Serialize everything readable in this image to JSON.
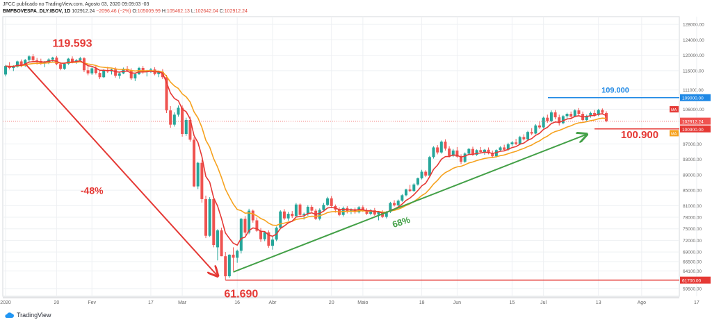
{
  "header": {
    "publisher_line": "JFCC publicado no TradingView.com, Agosto 03, 2020 09:09:03 -03",
    "symbol": "BMFBOVESPA_DLY:IBOV, 1D",
    "last": "102912.24",
    "change": "−2096.46 (−2%)",
    "o_label": "O:",
    "o": "105009.99",
    "h_label": "H:",
    "h": "105462.13",
    "l_label": "L:",
    "l": "102642.04",
    "c_label": "C:",
    "c": "102912.24"
  },
  "brand": {
    "name": "TradingView",
    "icon": "tradingview-cloud-icon"
  },
  "colors": {
    "up": "#26a69a",
    "down": "#ef5350",
    "ma_fast": "#e53935",
    "ma_slow": "#f6a21e",
    "trend_down": "#e53935",
    "trend_up": "#43a047",
    "level_blue": "#1e88e5",
    "grid": "#eef0f3",
    "axis_text": "#666"
  },
  "chart_data": {
    "type": "candlestick",
    "title": "",
    "ylim": [
      57500,
      130000
    ],
    "y_ticks": [
      "128000.00",
      "124000.00",
      "120000.00",
      "116000.00",
      "111000.00",
      "106000.00",
      "100900.00",
      "97000.00",
      "93000.00",
      "89000.00",
      "85000.00",
      "81000.00",
      "78000.00",
      "75000.00",
      "72000.00",
      "69000.00",
      "66500.00",
      "64100.00",
      "59500.00"
    ],
    "y_tick_values": [
      128000,
      124000,
      120000,
      116000,
      111000,
      106000,
      100900,
      97000,
      93000,
      89000,
      85000,
      81000,
      78000,
      75000,
      72000,
      69000,
      66500,
      64100,
      59500
    ],
    "x_ticks": [
      "2020",
      "20",
      "Fev",
      "17",
      "Mar",
      "16",
      "Abr",
      "20",
      "Maio",
      "18",
      "Jun",
      "15",
      "Jul",
      "13",
      "Ago",
      "17"
    ],
    "x_tick_index": [
      0,
      13,
      22,
      37,
      45,
      59,
      68,
      83,
      91,
      106,
      115,
      129,
      137,
      151,
      162,
      176
    ],
    "candles_start": "2020-01-02",
    "candles": [
      [
        115000,
        117500,
        114500,
        117200
      ],
      [
        117200,
        118200,
        116300,
        116700
      ],
      [
        116700,
        117400,
        115900,
        117000
      ],
      [
        117000,
        118600,
        116800,
        118400
      ],
      [
        118400,
        118900,
        116900,
        117300
      ],
      [
        117300,
        119000,
        117000,
        118800
      ],
      [
        118800,
        120000,
        118200,
        119700
      ],
      [
        119700,
        120300,
        118400,
        118700
      ],
      [
        118700,
        119300,
        117600,
        118500
      ],
      [
        118500,
        119100,
        117500,
        117900
      ],
      [
        117900,
        118500,
        116900,
        118200
      ],
      [
        118200,
        119200,
        117700,
        118900
      ],
      [
        118900,
        119600,
        118300,
        119400
      ],
      [
        119400,
        119800,
        117400,
        117700
      ],
      [
        117700,
        118200,
        116100,
        116500
      ],
      [
        116500,
        118100,
        116200,
        117800
      ],
      [
        117800,
        119300,
        117500,
        119100
      ],
      [
        119100,
        119700,
        117900,
        118300
      ],
      [
        118300,
        119000,
        117800,
        118700
      ],
      [
        118700,
        119593,
        118200,
        119200
      ],
      [
        119200,
        119500,
        115600,
        116100
      ],
      [
        116100,
        117300,
        114800,
        115300
      ],
      [
        115300,
        116900,
        114900,
        116600
      ],
      [
        116600,
        117200,
        115000,
        115400
      ],
      [
        115400,
        115900,
        113800,
        114300
      ],
      [
        114300,
        116400,
        114100,
        116100
      ],
      [
        116100,
        117000,
        115400,
        115800
      ],
      [
        115800,
        116500,
        115000,
        116300
      ],
      [
        116300,
        116900,
        114200,
        114700
      ],
      [
        114700,
        115600,
        113900,
        115300
      ],
      [
        115300,
        116800,
        115100,
        116500
      ],
      [
        116500,
        117200,
        115700,
        116000
      ],
      [
        116000,
        116600,
        113600,
        114000
      ],
      [
        114000,
        115300,
        113300,
        115100
      ],
      [
        115100,
        117000,
        114900,
        116700
      ],
      [
        116700,
        117200,
        115200,
        115600
      ],
      [
        115600,
        116200,
        114500,
        115900
      ],
      [
        115900,
        116700,
        115400,
        116300
      ],
      [
        116300,
        116900,
        114800,
        115100
      ],
      [
        115100,
        116000,
        114300,
        115700
      ],
      [
        115700,
        116400,
        113800,
        114300
      ],
      [
        114300,
        114900,
        105000,
        105700
      ],
      [
        105700,
        106800,
        101200,
        102000
      ],
      [
        102000,
        105200,
        101500,
        104600
      ],
      [
        104600,
        107000,
        104100,
        106400
      ],
      [
        106400,
        107000,
        98900,
        99600
      ],
      [
        99600,
        103800,
        99100,
        103200
      ],
      [
        103200,
        104100,
        97600,
        98100
      ],
      [
        98100,
        98700,
        85800,
        86000
      ],
      [
        86000,
        92400,
        85300,
        92100
      ],
      [
        92100,
        92800,
        81800,
        82700
      ],
      [
        82700,
        83600,
        72600,
        73200
      ],
      [
        73200,
        83200,
        72900,
        82700
      ],
      [
        82700,
        82900,
        70200,
        70800
      ],
      [
        70200,
        74900,
        66800,
        74600
      ],
      [
        74600,
        75300,
        67900,
        67900
      ],
      [
        67900,
        69000,
        61690,
        62700
      ],
      [
        62700,
        68400,
        62300,
        68300
      ],
      [
        68300,
        70200,
        64100,
        67500
      ],
      [
        67500,
        69600,
        66200,
        69300
      ],
      [
        69300,
        77800,
        68600,
        77600
      ],
      [
        77600,
        78300,
        73400,
        74000
      ],
      [
        74000,
        80200,
        73600,
        79700
      ],
      [
        79700,
        80000,
        76600,
        77200
      ],
      [
        77200,
        77900,
        74200,
        74500
      ],
      [
        74500,
        75200,
        71600,
        72300
      ],
      [
        72300,
        74300,
        71800,
        74100
      ],
      [
        74100,
        74600,
        70100,
        70600
      ],
      [
        70600,
        73000,
        69600,
        72200
      ],
      [
        72200,
        75600,
        71800,
        75300
      ],
      [
        75300,
        79800,
        74900,
        79500
      ],
      [
        79500,
        80100,
        77300,
        77700
      ],
      [
        77700,
        79400,
        77100,
        78900
      ],
      [
        78900,
        79600,
        77800,
        78300
      ],
      [
        78300,
        81700,
        78000,
        81300
      ],
      [
        81300,
        81600,
        78100,
        78600
      ],
      [
        78600,
        79200,
        77400,
        78900
      ],
      [
        78900,
        81100,
        78400,
        80700
      ],
      [
        80700,
        81200,
        79400,
        79700
      ],
      [
        79700,
        80200,
        77300,
        77600
      ],
      [
        77600,
        80300,
        77200,
        79900
      ],
      [
        79900,
        81700,
        79500,
        81200
      ],
      [
        81200,
        83300,
        80900,
        82900
      ],
      [
        82900,
        83500,
        80400,
        80900
      ],
      [
        80900,
        81300,
        79200,
        80000
      ],
      [
        80000,
        80600,
        78300,
        78600
      ],
      [
        78600,
        80800,
        78200,
        80400
      ],
      [
        80400,
        80900,
        79000,
        79500
      ],
      [
        79500,
        80300,
        78800,
        80100
      ],
      [
        80100,
        80500,
        78900,
        79300
      ],
      [
        79300,
        80900,
        79000,
        80600
      ],
      [
        80600,
        81100,
        79400,
        79800
      ],
      [
        79800,
        80300,
        78600,
        78900
      ],
      [
        78900,
        80100,
        78500,
        79800
      ],
      [
        79800,
        80400,
        78400,
        78700
      ],
      [
        78700,
        79600,
        77200,
        79300
      ],
      [
        79300,
        79800,
        77800,
        78100
      ],
      [
        78100,
        79600,
        77700,
        79400
      ],
      [
        79400,
        82000,
        79100,
        81700
      ],
      [
        81700,
        82400,
        80800,
        81100
      ],
      [
        81100,
        82600,
        80900,
        82300
      ],
      [
        82300,
        84000,
        82000,
        83700
      ],
      [
        83700,
        85400,
        83400,
        85200
      ],
      [
        85200,
        86400,
        84500,
        84800
      ],
      [
        84800,
        86800,
        84600,
        86500
      ],
      [
        86500,
        88300,
        86200,
        88100
      ],
      [
        88100,
        90300,
        87800,
        89800
      ],
      [
        89800,
        90200,
        88400,
        88800
      ],
      [
        88800,
        93900,
        88500,
        93600
      ],
      [
        93600,
        96400,
        93200,
        96100
      ],
      [
        96100,
        96700,
        94300,
        94800
      ],
      [
        94800,
        97900,
        94500,
        97600
      ],
      [
        97600,
        98200,
        95300,
        95800
      ],
      [
        95800,
        96400,
        93500,
        93900
      ],
      [
        93900,
        95700,
        93600,
        95300
      ],
      [
        95300,
        96200,
        93400,
        93700
      ],
      [
        93700,
        94300,
        91800,
        92400
      ],
      [
        92400,
        94800,
        92100,
        94500
      ],
      [
        94500,
        96000,
        94100,
        95700
      ],
      [
        95700,
        96300,
        93900,
        94200
      ],
      [
        94200,
        95600,
        93900,
        95400
      ],
      [
        95400,
        96200,
        94700,
        94900
      ],
      [
        94900,
        95700,
        94200,
        95500
      ],
      [
        95500,
        96100,
        94300,
        94600
      ],
      [
        94600,
        95300,
        93400,
        93800
      ],
      [
        93800,
        95600,
        93500,
        95400
      ],
      [
        95400,
        96400,
        95100,
        96100
      ],
      [
        96100,
        96800,
        95200,
        95500
      ],
      [
        95500,
        97300,
        95200,
        96900
      ],
      [
        96900,
        97800,
        96400,
        97400
      ],
      [
        97400,
        98300,
        96700,
        97000
      ],
      [
        97000,
        99100,
        96800,
        98800
      ],
      [
        98800,
        99500,
        97900,
        98200
      ],
      [
        98200,
        100400,
        97900,
        100100
      ],
      [
        100100,
        101100,
        99300,
        99700
      ],
      [
        99700,
        102100,
        99500,
        101800
      ],
      [
        101800,
        102800,
        100900,
        101300
      ],
      [
        101300,
        104100,
        101000,
        103800
      ],
      [
        103800,
        104600,
        102500,
        102900
      ],
      [
        102900,
        105700,
        102600,
        105200
      ],
      [
        105200,
        105800,
        103400,
        103900
      ],
      [
        103900,
        104600,
        101800,
        102400
      ],
      [
        102400,
        104500,
        102100,
        104200
      ],
      [
        104200,
        105100,
        103300,
        104800
      ],
      [
        104800,
        105400,
        103800,
        104100
      ],
      [
        104100,
        106000,
        103900,
        105700
      ],
      [
        105700,
        106300,
        104400,
        104800
      ],
      [
        104800,
        105400,
        102800,
        103200
      ],
      [
        103200,
        104600,
        102900,
        104300
      ],
      [
        104300,
        105400,
        103800,
        105000
      ],
      [
        105000,
        105800,
        104100,
        104500
      ],
      [
        104500,
        106100,
        104200,
        105800
      ],
      [
        105800,
        106200,
        104700,
        105100
      ],
      [
        105009.99,
        105462.13,
        102642.04,
        102912.24
      ]
    ],
    "ma_fast_label": "MA",
    "ma_slow_label": "MA",
    "ma_fast_last": "102912.24",
    "ma_slow_last": "100900.00",
    "price_tag_low": "61700.00",
    "price_tag_blue": "109000.00",
    "annotations": {
      "peak": "119.593",
      "drop_pct": "-48%",
      "low": "61.690",
      "rise_pct": "68%",
      "level_blue": "109.000",
      "level_red": "100.900"
    },
    "levels": {
      "blue": 109000,
      "red": 100900,
      "low": 61700
    },
    "grid": true
  }
}
